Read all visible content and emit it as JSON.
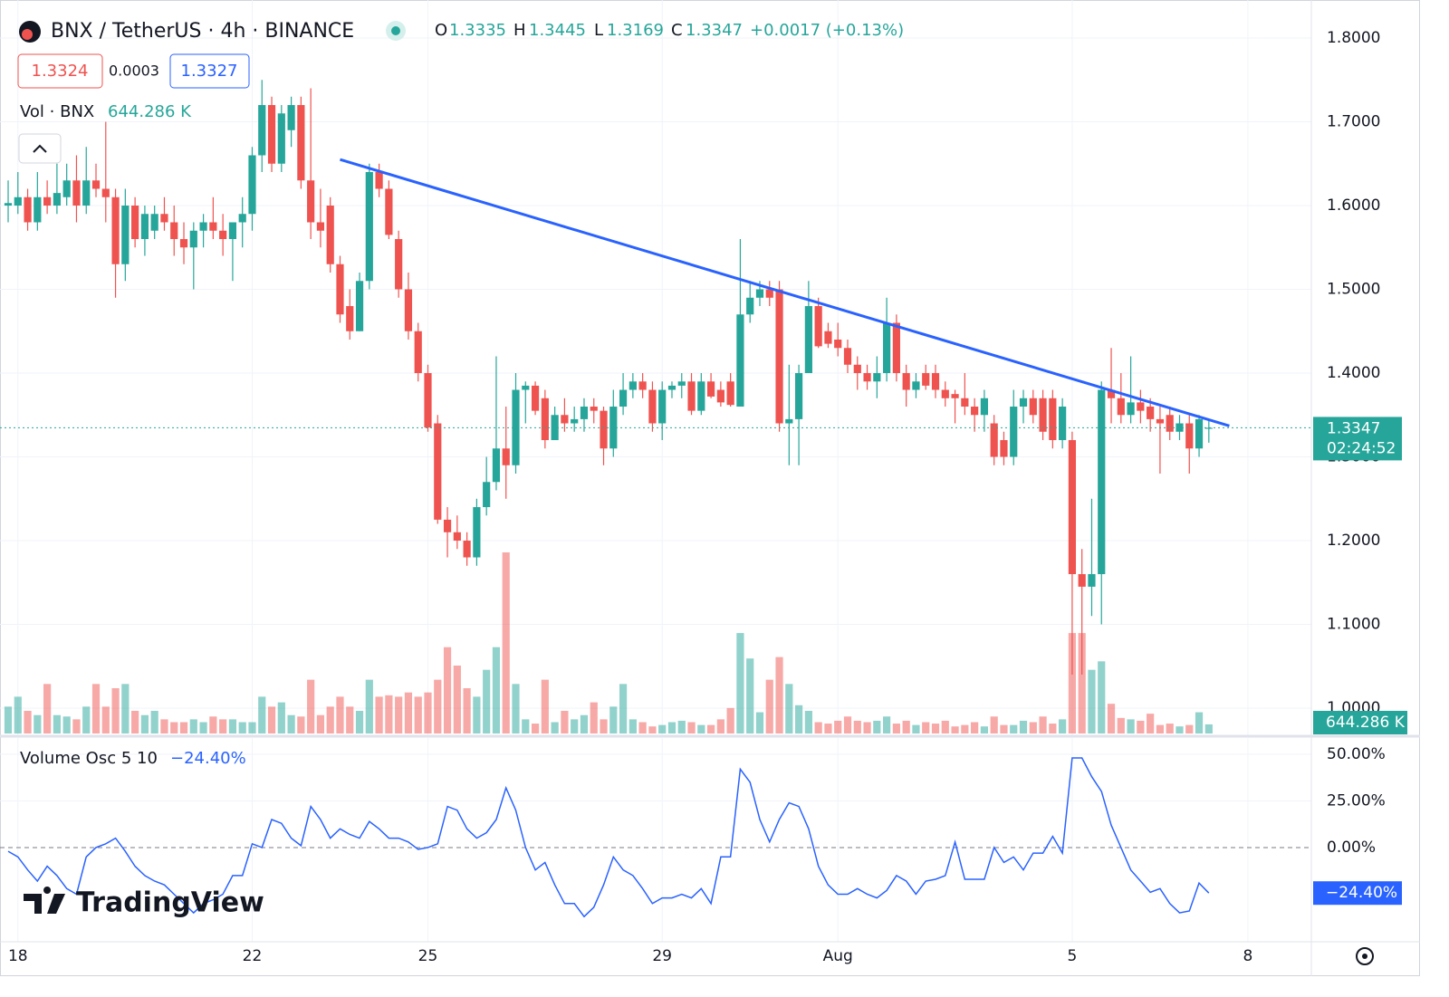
{
  "header": {
    "symbol": "BNX / TetherUS · 4h · BINANCE",
    "change": "+0.0017 (+0.13%)",
    "bid": "1.3324",
    "spread": "0.0003",
    "ask": "1.3327",
    "volume_title": "Vol · BNX",
    "osc_title": "Volume Osc 5 10",
    "countdown": "02:24:52",
    "watermark": "TradingView"
  },
  "chart_data": {
    "type": "candlestick",
    "up_color": "#26a69a",
    "down_color": "#ef5350",
    "xticks": [
      {
        "value": 1,
        "label": "18"
      },
      {
        "value": 25,
        "label": "22"
      },
      {
        "value": 43,
        "label": "25"
      },
      {
        "value": 67,
        "label": "29"
      },
      {
        "value": 85,
        "label": "Aug"
      },
      {
        "value": 109,
        "label": "5"
      },
      {
        "value": 127,
        "label": "8"
      }
    ],
    "xlim": [
      -0.835,
      133.5
    ],
    "ylim": [
      0.9676,
      1.8454
    ],
    "yticks": [
      {
        "value": 1.0,
        "label": "1.0000"
      },
      {
        "value": 1.1,
        "label": "1.1000"
      },
      {
        "value": 1.2,
        "label": "1.2000"
      },
      {
        "value": 1.3,
        "label": "1.3000"
      },
      {
        "value": 1.4,
        "label": "1.4000"
      },
      {
        "value": 1.5,
        "label": "1.5000"
      },
      {
        "value": 1.6,
        "label": "1.6000"
      },
      {
        "value": 1.7,
        "label": "1.7000"
      },
      {
        "value": 1.8,
        "label": "1.8000"
      }
    ],
    "grid": true,
    "candles": [
      [
        1.6,
        1.63,
        1.58,
        1.603
      ],
      [
        1.6,
        1.64,
        1.59,
        1.61
      ],
      [
        1.61,
        1.62,
        1.57,
        1.58
      ],
      [
        1.58,
        1.64,
        1.57,
        1.61
      ],
      [
        1.61,
        1.63,
        1.59,
        1.6
      ],
      [
        1.6,
        1.65,
        1.59,
        1.615
      ],
      [
        1.61,
        1.65,
        1.6,
        1.63
      ],
      [
        1.63,
        1.66,
        1.58,
        1.6
      ],
      [
        1.6,
        1.67,
        1.59,
        1.63
      ],
      [
        1.63,
        1.65,
        1.61,
        1.62
      ],
      [
        1.62,
        1.7,
        1.58,
        1.61
      ],
      [
        1.61,
        1.62,
        1.49,
        1.53
      ],
      [
        1.53,
        1.62,
        1.51,
        1.6
      ],
      [
        1.6,
        1.61,
        1.55,
        1.56
      ],
      [
        1.56,
        1.6,
        1.54,
        1.59
      ],
      [
        1.57,
        1.6,
        1.56,
        1.59
      ],
      [
        1.59,
        1.61,
        1.57,
        1.58
      ],
      [
        1.58,
        1.6,
        1.54,
        1.56
      ],
      [
        1.56,
        1.58,
        1.53,
        1.55
      ],
      [
        1.55,
        1.58,
        1.5,
        1.57
      ],
      [
        1.57,
        1.59,
        1.55,
        1.58
      ],
      [
        1.58,
        1.61,
        1.56,
        1.57
      ],
      [
        1.57,
        1.59,
        1.54,
        1.56
      ],
      [
        1.56,
        1.58,
        1.51,
        1.58
      ],
      [
        1.58,
        1.61,
        1.55,
        1.59
      ],
      [
        1.59,
        1.67,
        1.57,
        1.66
      ],
      [
        1.66,
        1.75,
        1.64,
        1.72
      ],
      [
        1.72,
        1.73,
        1.64,
        1.65
      ],
      [
        1.65,
        1.72,
        1.64,
        1.71
      ],
      [
        1.69,
        1.73,
        1.67,
        1.72
      ],
      [
        1.72,
        1.73,
        1.62,
        1.63
      ],
      [
        1.63,
        1.74,
        1.56,
        1.58
      ],
      [
        1.58,
        1.62,
        1.55,
        1.57
      ],
      [
        1.6,
        1.61,
        1.52,
        1.53
      ],
      [
        1.53,
        1.54,
        1.46,
        1.47
      ],
      [
        1.48,
        1.5,
        1.44,
        1.45
      ],
      [
        1.45,
        1.52,
        1.45,
        1.51
      ],
      [
        1.51,
        1.65,
        1.5,
        1.64
      ],
      [
        1.64,
        1.65,
        1.61,
        1.62
      ],
      [
        1.62,
        1.63,
        1.56,
        1.565
      ],
      [
        1.56,
        1.57,
        1.49,
        1.5
      ],
      [
        1.5,
        1.52,
        1.44,
        1.45
      ],
      [
        1.45,
        1.46,
        1.39,
        1.4
      ],
      [
        1.4,
        1.41,
        1.33,
        1.335
      ],
      [
        1.34,
        1.35,
        1.22,
        1.225
      ],
      [
        1.225,
        1.24,
        1.18,
        1.21
      ],
      [
        1.21,
        1.23,
        1.19,
        1.2
      ],
      [
        1.2,
        1.21,
        1.17,
        1.18
      ],
      [
        1.18,
        1.25,
        1.17,
        1.24
      ],
      [
        1.24,
        1.3,
        1.23,
        1.27
      ],
      [
        1.27,
        1.42,
        1.26,
        1.31
      ],
      [
        1.31,
        1.36,
        1.25,
        1.29
      ],
      [
        1.29,
        1.4,
        1.28,
        1.38
      ],
      [
        1.38,
        1.39,
        1.34,
        1.385
      ],
      [
        1.385,
        1.39,
        1.35,
        1.355
      ],
      [
        1.37,
        1.38,
        1.31,
        1.32
      ],
      [
        1.32,
        1.36,
        1.32,
        1.35
      ],
      [
        1.35,
        1.37,
        1.33,
        1.34
      ],
      [
        1.34,
        1.36,
        1.33,
        1.345
      ],
      [
        1.345,
        1.37,
        1.33,
        1.36
      ],
      [
        1.36,
        1.37,
        1.34,
        1.355
      ],
      [
        1.355,
        1.36,
        1.29,
        1.31
      ],
      [
        1.31,
        1.38,
        1.3,
        1.36
      ],
      [
        1.36,
        1.4,
        1.35,
        1.38
      ],
      [
        1.38,
        1.4,
        1.37,
        1.39
      ],
      [
        1.39,
        1.4,
        1.37,
        1.38
      ],
      [
        1.38,
        1.39,
        1.33,
        1.34
      ],
      [
        1.34,
        1.39,
        1.32,
        1.38
      ],
      [
        1.38,
        1.39,
        1.37,
        1.385
      ],
      [
        1.385,
        1.4,
        1.37,
        1.39
      ],
      [
        1.39,
        1.4,
        1.35,
        1.355
      ],
      [
        1.355,
        1.4,
        1.35,
        1.39
      ],
      [
        1.39,
        1.4,
        1.37,
        1.372
      ],
      [
        1.38,
        1.39,
        1.36,
        1.365
      ],
      [
        1.39,
        1.4,
        1.36,
        1.362
      ],
      [
        1.36,
        1.56,
        1.36,
        1.47
      ],
      [
        1.47,
        1.51,
        1.46,
        1.49
      ],
      [
        1.49,
        1.51,
        1.48,
        1.5
      ],
      [
        1.5,
        1.51,
        1.48,
        1.49
      ],
      [
        1.5,
        1.51,
        1.33,
        1.34
      ],
      [
        1.34,
        1.41,
        1.29,
        1.345
      ],
      [
        1.345,
        1.41,
        1.29,
        1.4
      ],
      [
        1.4,
        1.51,
        1.4,
        1.48
      ],
      [
        1.48,
        1.49,
        1.43,
        1.432
      ],
      [
        1.45,
        1.46,
        1.43,
        1.435
      ],
      [
        1.44,
        1.46,
        1.42,
        1.43
      ],
      [
        1.43,
        1.44,
        1.4,
        1.41
      ],
      [
        1.41,
        1.42,
        1.38,
        1.4
      ],
      [
        1.4,
        1.41,
        1.38,
        1.39
      ],
      [
        1.39,
        1.42,
        1.37,
        1.4
      ],
      [
        1.4,
        1.49,
        1.39,
        1.46
      ],
      [
        1.46,
        1.47,
        1.39,
        1.4
      ],
      [
        1.4,
        1.41,
        1.36,
        1.38
      ],
      [
        1.38,
        1.4,
        1.37,
        1.39
      ],
      [
        1.4,
        1.41,
        1.38,
        1.385
      ],
      [
        1.4,
        1.41,
        1.37,
        1.38
      ],
      [
        1.38,
        1.39,
        1.36,
        1.37
      ],
      [
        1.375,
        1.38,
        1.34,
        1.37
      ],
      [
        1.37,
        1.4,
        1.35,
        1.36
      ],
      [
        1.36,
        1.37,
        1.33,
        1.35
      ],
      [
        1.35,
        1.38,
        1.33,
        1.37
      ],
      [
        1.34,
        1.35,
        1.29,
        1.3
      ],
      [
        1.32,
        1.33,
        1.29,
        1.3
      ],
      [
        1.3,
        1.38,
        1.29,
        1.36
      ],
      [
        1.36,
        1.38,
        1.34,
        1.37
      ],
      [
        1.37,
        1.38,
        1.34,
        1.35
      ],
      [
        1.37,
        1.38,
        1.32,
        1.33
      ],
      [
        1.37,
        1.38,
        1.31,
        1.32
      ],
      [
        1.32,
        1.37,
        1.31,
        1.36
      ],
      [
        1.32,
        1.33,
        1.04,
        1.16
      ],
      [
        1.16,
        1.19,
        1.04,
        1.145
      ],
      [
        1.145,
        1.25,
        1.11,
        1.16
      ],
      [
        1.16,
        1.39,
        1.1,
        1.38
      ],
      [
        1.38,
        1.43,
        1.34,
        1.37
      ],
      [
        1.37,
        1.4,
        1.34,
        1.35
      ],
      [
        1.35,
        1.42,
        1.34,
        1.365
      ],
      [
        1.365,
        1.38,
        1.34,
        1.355
      ],
      [
        1.36,
        1.37,
        1.33,
        1.345
      ],
      [
        1.345,
        1.36,
        1.28,
        1.34
      ],
      [
        1.35,
        1.36,
        1.32,
        1.33
      ],
      [
        1.33,
        1.35,
        1.32,
        1.34
      ],
      [
        1.34,
        1.35,
        1.28,
        1.31
      ],
      [
        1.31,
        1.35,
        1.3,
        1.345
      ],
      [
        1.3335,
        1.3445,
        1.3169,
        1.3347
      ]
    ],
    "volume": [
      1900,
      2600,
      1600,
      1300,
      3500,
      1300,
      1200,
      1000,
      1900,
      3500,
      1900,
      3200,
      3500,
      1600,
      1300,
      1600,
      1000,
      800,
      800,
      1000,
      800,
      1200,
      1000,
      1000,
      800,
      800,
      2600,
      1900,
      2200,
      1300,
      1200,
      3800,
      1300,
      1900,
      2600,
      1900,
      1600,
      3800,
      2600,
      2700,
      2600,
      2900,
      2600,
      2900,
      3800,
      6100,
      4800,
      3200,
      2600,
      4500,
      6100,
      12800,
      3500,
      1000,
      700,
      3800,
      800,
      1600,
      1000,
      1300,
      2200,
      1000,
      1900,
      3500,
      1000,
      800,
      500,
      600,
      800,
      900,
      800,
      600,
      600,
      1000,
      1800,
      7100,
      5300,
      1500,
      3800,
      5400,
      3500,
      2000,
      1600,
      800,
      700,
      900,
      1200,
      900,
      800,
      900,
      1200,
      700,
      900,
      600,
      800,
      700,
      900,
      500,
      600,
      800,
      500,
      1200,
      600,
      600,
      900,
      800,
      1200,
      700,
      1000,
      7100,
      7100,
      4500,
      5100,
      2100,
      1100,
      1000,
      900,
      1400,
      600,
      700,
      500,
      600,
      1500,
      644.286
    ],
    "volume_ylim": [
      0,
      51840
    ],
    "volume_label": "644.286 K",
    "trendline": {
      "x": [
        34,
        125.1
      ],
      "y": [
        1.655,
        1.337
      ],
      "color": "#2962ff"
    },
    "last_price": 1.3347,
    "oscillator": {
      "color": "#2962ff",
      "values": [
        -2,
        -5,
        -12,
        -18,
        -10,
        -15,
        -22,
        -25,
        -5,
        0,
        2,
        5,
        -2,
        -10,
        -15,
        -18,
        -20,
        -25,
        -30,
        -35,
        -30,
        -28,
        -25,
        -15,
        -15,
        2,
        0,
        15,
        13,
        5,
        1,
        22,
        15,
        5,
        10,
        7,
        5,
        14,
        10,
        5,
        5,
        3,
        -1,
        0,
        2,
        22,
        20,
        10,
        5,
        8,
        15,
        32,
        20,
        0,
        -12,
        -8,
        -20,
        -30,
        -30,
        -37,
        -32,
        -20,
        -5,
        -12,
        -15,
        -22,
        -30,
        -27,
        -27,
        -25,
        -27,
        -22,
        -30,
        -5,
        -5,
        42,
        35,
        15,
        3,
        15,
        24,
        22,
        10,
        -10,
        -20,
        -25,
        -25,
        -22,
        -25,
        -27,
        -23,
        -15,
        -18,
        -25,
        -18,
        -17,
        -15,
        3,
        -17,
        -17,
        -17,
        0,
        -8,
        -5,
        -12,
        -3,
        -3,
        6,
        -3,
        48,
        48,
        38,
        30,
        12,
        0,
        -12,
        -18,
        -24,
        -22,
        -30,
        -35,
        -34,
        -19,
        -24.4
      ],
      "last_label": "−24.40%",
      "ylim": [
        -50.5,
        58.7
      ],
      "yticks": [
        {
          "value": 50,
          "label": "50.00%"
        },
        {
          "value": 25,
          "label": "25.00%"
        },
        {
          "value": 0,
          "label": "0.00%"
        }
      ]
    }
  }
}
